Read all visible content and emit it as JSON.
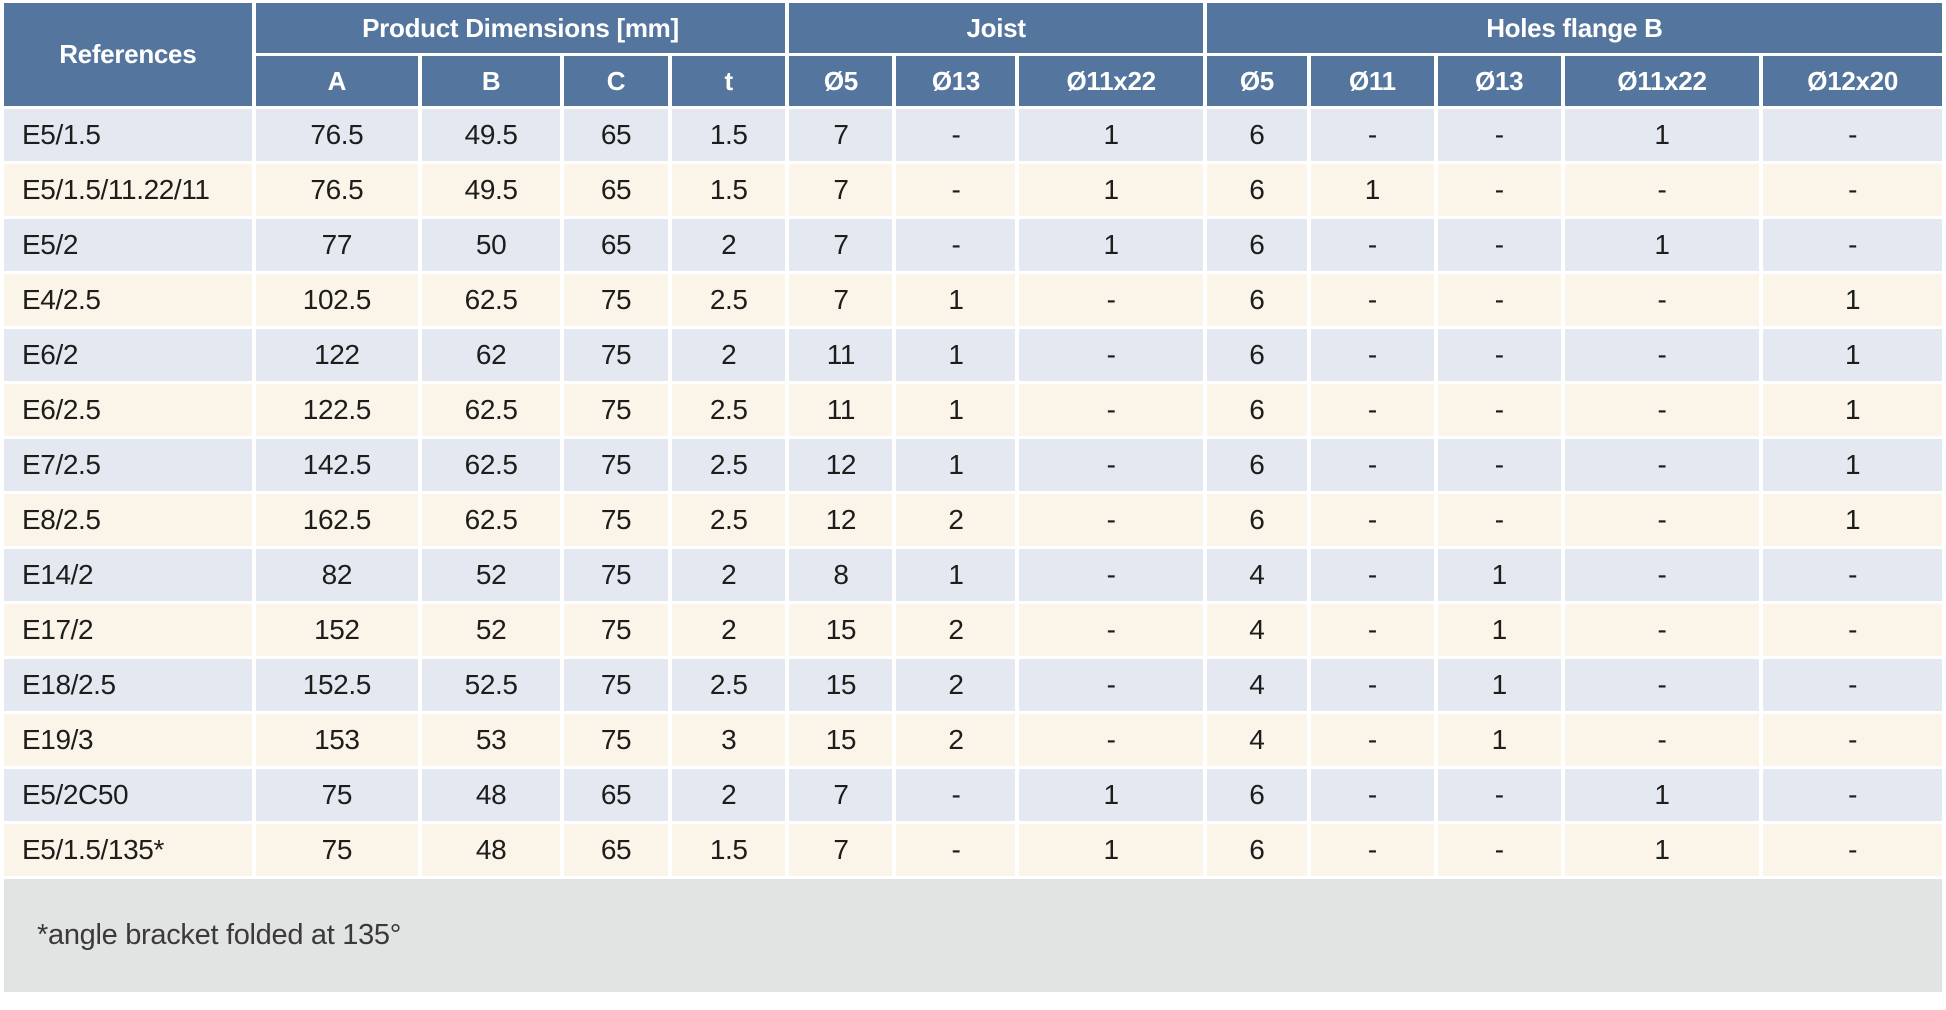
{
  "table": {
    "header_groups": [
      {
        "label": "References"
      },
      {
        "label": "Product Dimensions [mm]"
      },
      {
        "label": "Joist"
      },
      {
        "label": "Holes flange B"
      }
    ],
    "subheaders": [
      "A",
      "B",
      "C",
      "t",
      "Ø5",
      "Ø13",
      "Ø11x22",
      "Ø5",
      "Ø11",
      "Ø13",
      "Ø11x22",
      "Ø12x20"
    ],
    "rows": [
      [
        "E5/1.5",
        "76.5",
        "49.5",
        "65",
        "1.5",
        "7",
        "-",
        "1",
        "6",
        "-",
        "-",
        "1",
        "-"
      ],
      [
        "E5/1.5/11.22/11",
        "76.5",
        "49.5",
        "65",
        "1.5",
        "7",
        "-",
        "1",
        "6",
        "1",
        "-",
        "-",
        "-"
      ],
      [
        "E5/2",
        "77",
        "50",
        "65",
        "2",
        "7",
        "-",
        "1",
        "6",
        "-",
        "-",
        "1",
        "-"
      ],
      [
        "E4/2.5",
        "102.5",
        "62.5",
        "75",
        "2.5",
        "7",
        "1",
        "-",
        "6",
        "-",
        "-",
        "-",
        "1"
      ],
      [
        "E6/2",
        "122",
        "62",
        "75",
        "2",
        "11",
        "1",
        "-",
        "6",
        "-",
        "-",
        "-",
        "1"
      ],
      [
        "E6/2.5",
        "122.5",
        "62.5",
        "75",
        "2.5",
        "11",
        "1",
        "-",
        "6",
        "-",
        "-",
        "-",
        "1"
      ],
      [
        "E7/2.5",
        "142.5",
        "62.5",
        "75",
        "2.5",
        "12",
        "1",
        "-",
        "6",
        "-",
        "-",
        "-",
        "1"
      ],
      [
        "E8/2.5",
        "162.5",
        "62.5",
        "75",
        "2.5",
        "12",
        "2",
        "-",
        "6",
        "-",
        "-",
        "-",
        "1"
      ],
      [
        "E14/2",
        "82",
        "52",
        "75",
        "2",
        "8",
        "1",
        "-",
        "4",
        "-",
        "1",
        "-",
        "-"
      ],
      [
        "E17/2",
        "152",
        "52",
        "75",
        "2",
        "15",
        "2",
        "-",
        "4",
        "-",
        "1",
        "-",
        "-"
      ],
      [
        "E18/2.5",
        "152.5",
        "52.5",
        "75",
        "2.5",
        "15",
        "2",
        "-",
        "4",
        "-",
        "1",
        "-",
        "-"
      ],
      [
        "E19/3",
        "153",
        "53",
        "75",
        "3",
        "15",
        "2",
        "-",
        "4",
        "-",
        "1",
        "-",
        "-"
      ],
      [
        "E5/2C50",
        "75",
        "48",
        "65",
        "2",
        "7",
        "-",
        "1",
        "6",
        "-",
        "-",
        "1",
        "-"
      ],
      [
        "E5/1.5/135*",
        "75",
        "48",
        "65",
        "1.5",
        "7",
        "-",
        "1",
        "6",
        "-",
        "-",
        "1",
        "-"
      ]
    ]
  },
  "footnote": "*angle bracket folded at 135°",
  "colors": {
    "header_bg": "#54759d",
    "row_blue": "#e4e9f1",
    "row_cream": "#fbf4e9",
    "footnote_bg": "#e2e3e3",
    "text": "#1d1d1b"
  }
}
